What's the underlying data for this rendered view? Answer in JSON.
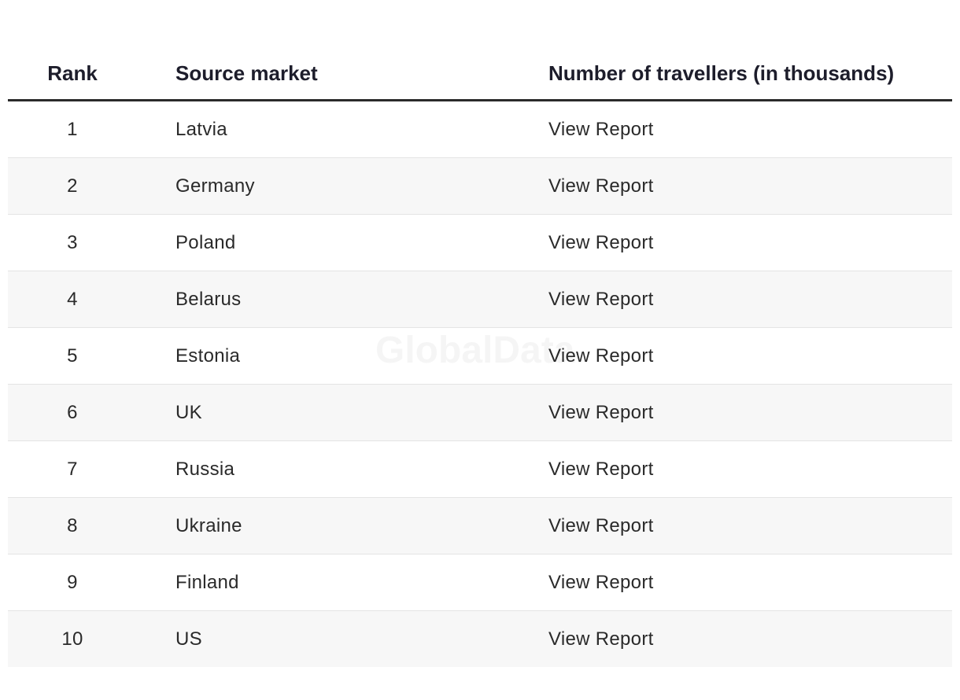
{
  "watermark": "GlobalData",
  "table": {
    "headers": [
      "Rank",
      "Source market",
      "Number of travellers (in thousands)"
    ],
    "rows": [
      [
        1,
        "Latvia",
        "View Report"
      ],
      [
        2,
        "Germany",
        "View Report"
      ],
      [
        3,
        "Poland",
        "View Report"
      ],
      [
        4,
        "Belarus",
        "View Report"
      ],
      [
        5,
        "Estonia",
        "View Report"
      ],
      [
        6,
        "UK",
        "View Report"
      ],
      [
        7,
        "Russia",
        "View Report"
      ],
      [
        8,
        "Ukraine",
        "View Report"
      ],
      [
        9,
        "Finland",
        "View Report"
      ],
      [
        10,
        "US",
        "View Report"
      ]
    ]
  }
}
